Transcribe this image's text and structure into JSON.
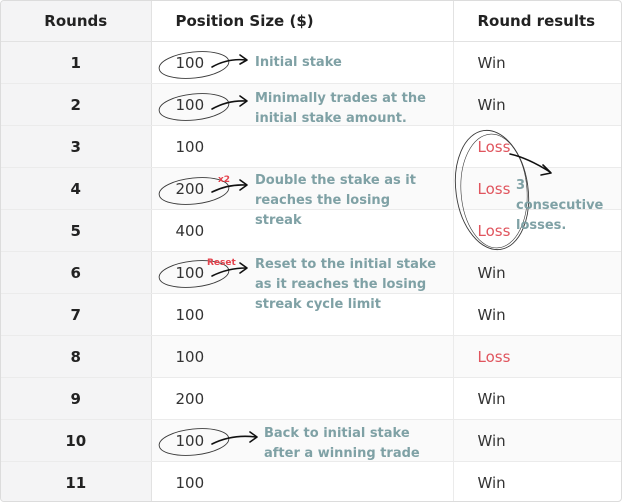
{
  "headers": {
    "rounds": "Rounds",
    "position": "Position Size ($)",
    "results": "Round results"
  },
  "rows": [
    {
      "round": "1",
      "size": "100",
      "result": "Win"
    },
    {
      "round": "2",
      "size": "100",
      "result": "Win"
    },
    {
      "round": "3",
      "size": "100",
      "result": "Loss"
    },
    {
      "round": "4",
      "size": "200",
      "result": "Loss"
    },
    {
      "round": "5",
      "size": "400",
      "result": "Loss"
    },
    {
      "round": "6",
      "size": "100",
      "result": "Win"
    },
    {
      "round": "7",
      "size": "100",
      "result": "Win"
    },
    {
      "round": "8",
      "size": "100",
      "result": "Loss"
    },
    {
      "round": "9",
      "size": "200",
      "result": "Win"
    },
    {
      "round": "10",
      "size": "100",
      "result": "Win"
    },
    {
      "round": "11",
      "size": "100",
      "result": "Win"
    }
  ],
  "annotations": {
    "initial": "Initial stake",
    "minimal": "Minimally trades at the initial stake amount.",
    "double": "Double the stake as it reaches the losing streak",
    "reset": "Reset to the initial stake as it reaches the losing streak cycle limit",
    "back": "Back to initial stake after a winning trade",
    "losses": "3 consecutive losses.",
    "tag_x2": "x2",
    "tag_reset": "Reset"
  },
  "colors": {
    "annotation": "#7fa1a5",
    "loss": "#e0555e",
    "tag": "#e4424c",
    "header_bg": "#f4f4f5"
  }
}
